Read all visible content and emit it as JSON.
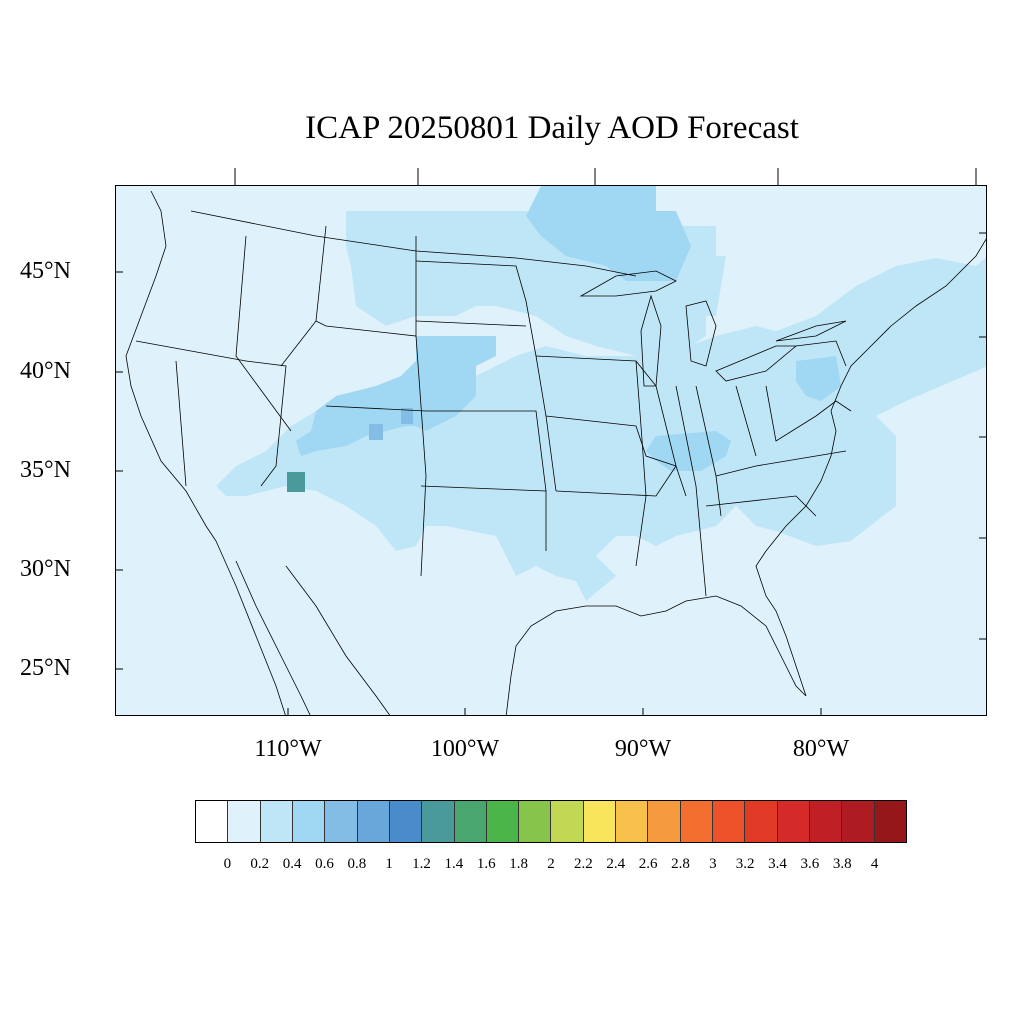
{
  "title": "ICAP 20250801 Daily AOD Forecast",
  "lat_labels": [
    "45°N",
    "40°N",
    "35°N",
    "30°N",
    "25°N"
  ],
  "lon_labels": [
    "110°W",
    "100°W",
    "90°W",
    "80°W"
  ],
  "colorbar": {
    "colors": [
      "#ffffff",
      "#dff2fb",
      "#bfe6f7",
      "#a0d7f2",
      "#83bde6",
      "#69a6da",
      "#4a8cc9",
      "#4a9a9c",
      "#49a66e",
      "#4cb54a",
      "#86c44c",
      "#c2d855",
      "#f8e55b",
      "#f7c04a",
      "#f59a3f",
      "#f36f2f",
      "#ec5129",
      "#e03a27",
      "#d42a29",
      "#c11f26",
      "#ae1b22",
      "#951719"
    ],
    "labels": [
      "0",
      "0.2",
      "0.4",
      "0.6",
      "0.8",
      "1",
      "1.2",
      "1.4",
      "1.6",
      "1.8",
      "2",
      "2.2",
      "2.4",
      "2.6",
      "2.8",
      "3",
      "3.2",
      "3.4",
      "3.6",
      "3.8",
      "4"
    ]
  },
  "colors": {
    "background_aod": "#dff2fb",
    "light_blue": "#bfe6f7",
    "mid_blue": "#a0d7f2",
    "darker_blue": "#83bde6",
    "teal": "#4a9a9c"
  }
}
